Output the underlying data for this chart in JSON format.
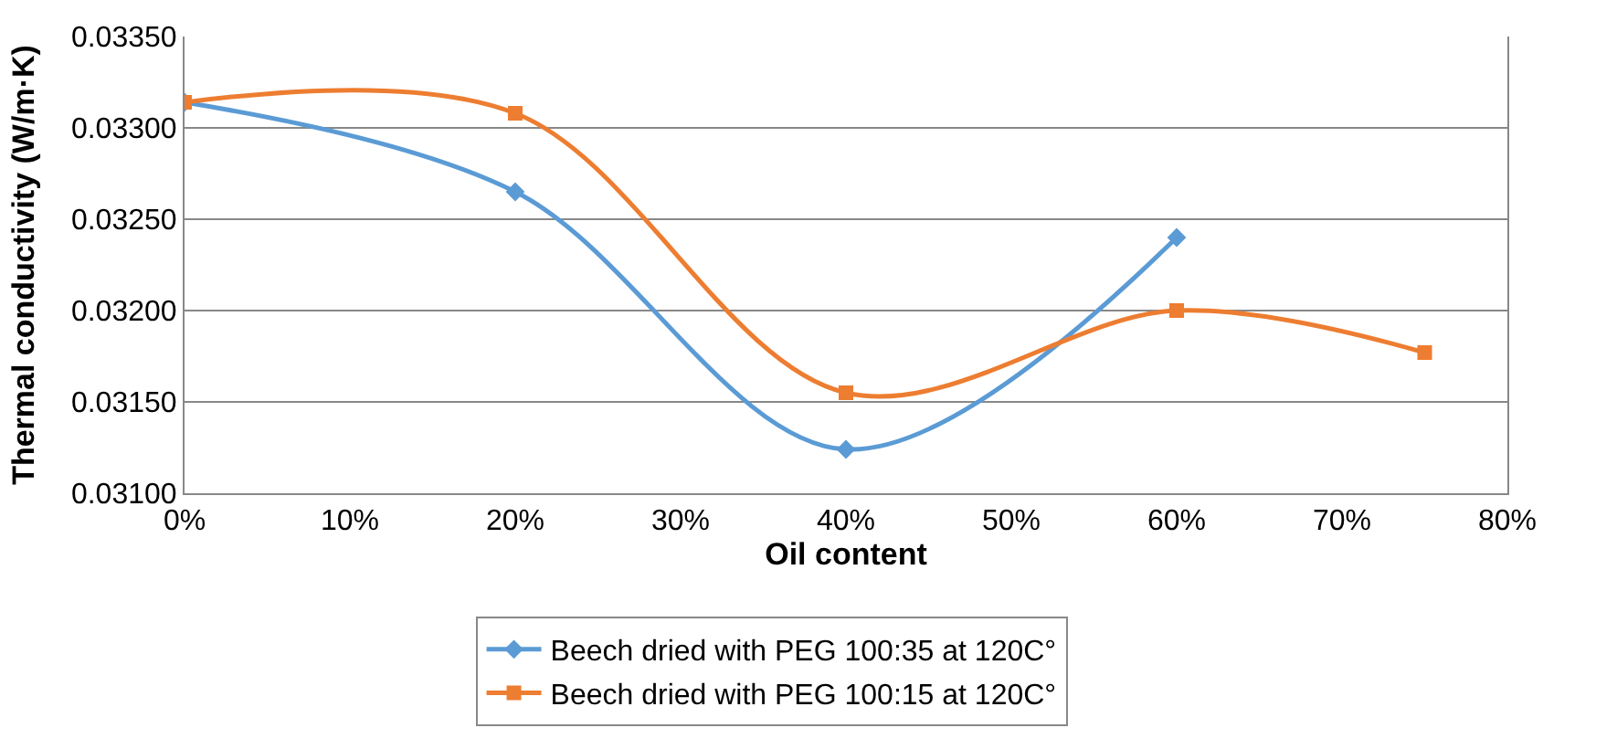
{
  "chart_data": {
    "type": "line",
    "xlabel": "Oil content",
    "ylabel": "Thermal conductivity (W/m·K)",
    "xlim": [
      0,
      80
    ],
    "xticks": [
      {
        "value": 0,
        "label": "0%"
      },
      {
        "value": 10,
        "label": "10%"
      },
      {
        "value": 20,
        "label": "20%"
      },
      {
        "value": 30,
        "label": "30%"
      },
      {
        "value": 40,
        "label": "40%"
      },
      {
        "value": 50,
        "label": "50%"
      },
      {
        "value": 60,
        "label": "60%"
      },
      {
        "value": 70,
        "label": "70%"
      },
      {
        "value": 80,
        "label": "80%"
      }
    ],
    "ylim": [
      0.031,
      0.0335
    ],
    "yticks": [
      {
        "value": 0.031,
        "label": "0.03100"
      },
      {
        "value": 0.0315,
        "label": "0.03150"
      },
      {
        "value": 0.032,
        "label": "0.03200"
      },
      {
        "value": 0.0325,
        "label": "0.03250"
      },
      {
        "value": 0.033,
        "label": "0.03300"
      },
      {
        "value": 0.0335,
        "label": "0.03350"
      }
    ],
    "grid": "y",
    "legend": "bottom",
    "series": [
      {
        "name": "Beech dried with PEG 100:35 at 120C°",
        "color": "#5b9bd5",
        "marker": "diamond",
        "x": [
          0,
          20,
          40,
          60
        ],
        "values": [
          0.03314,
          0.03265,
          0.03124,
          0.0324
        ]
      },
      {
        "name": "Beech dried with PEG 100:15 at 120C°",
        "color": "#ed7d31",
        "marker": "square",
        "x": [
          0,
          20,
          40,
          60,
          75
        ],
        "values": [
          0.03314,
          0.03308,
          0.03155,
          0.032,
          0.03177
        ]
      }
    ]
  }
}
